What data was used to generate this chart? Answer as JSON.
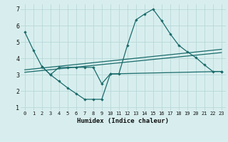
{
  "xlabel": "Humidex (Indice chaleur)",
  "xlim": [
    -0.5,
    23.5
  ],
  "ylim": [
    0.8,
    7.3
  ],
  "xticks": [
    0,
    1,
    2,
    3,
    4,
    5,
    6,
    7,
    8,
    9,
    10,
    11,
    12,
    13,
    14,
    15,
    16,
    17,
    18,
    19,
    20,
    21,
    22,
    23
  ],
  "yticks": [
    1,
    2,
    3,
    4,
    5,
    6,
    7
  ],
  "bg_color": "#d8eeee",
  "grid_color": "#b8d8d8",
  "line_color": "#1a6b6b",
  "line1_x": [
    0,
    1,
    2,
    3,
    4,
    5,
    6,
    7,
    8,
    9,
    10,
    11,
    12,
    13,
    14,
    15,
    16,
    17,
    18,
    19,
    20,
    21,
    22,
    23
  ],
  "line1_y": [
    5.6,
    4.5,
    3.5,
    3.0,
    2.6,
    2.2,
    1.85,
    1.5,
    1.5,
    1.5,
    3.05,
    3.05,
    4.8,
    6.35,
    6.7,
    7.0,
    6.3,
    5.5,
    4.8,
    4.4,
    4.05,
    3.6,
    3.2,
    3.2
  ],
  "line2_x": [
    2,
    3,
    4,
    5,
    6,
    7,
    8,
    9,
    10,
    23
  ],
  "line2_y": [
    3.5,
    3.0,
    3.45,
    3.45,
    3.45,
    3.45,
    3.45,
    2.45,
    3.05,
    3.2
  ],
  "line3_x": [
    0,
    23
  ],
  "line3_y": [
    3.3,
    4.55
  ],
  "line4_x": [
    0,
    23
  ],
  "line4_y": [
    3.15,
    4.35
  ]
}
